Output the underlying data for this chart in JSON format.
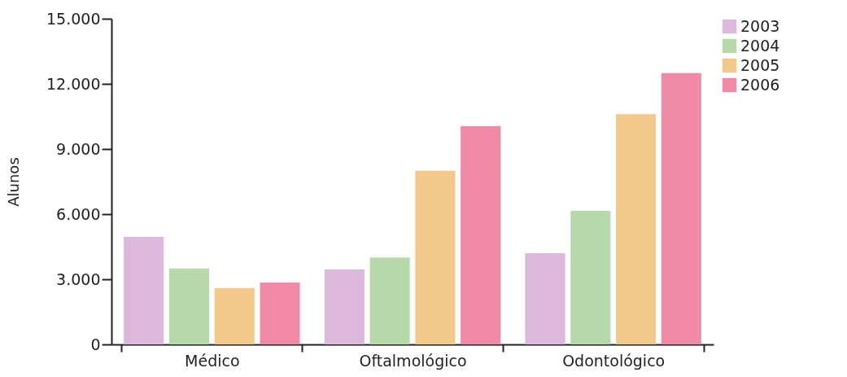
{
  "chart_data": {
    "type": "bar",
    "ylabel": "Alunos",
    "categories": [
      "Médico",
      "Oftalmológico",
      "Odontológico"
    ],
    "series": [
      {
        "name": "2003",
        "color": "#dcb8dc",
        "values": [
          4950,
          3450,
          4200
        ]
      },
      {
        "name": "2004",
        "color": "#b5d9a8",
        "values": [
          3500,
          4000,
          6150
        ]
      },
      {
        "name": "2005",
        "color": "#f3c98a",
        "values": [
          2600,
          8000,
          10600
        ]
      },
      {
        "name": "2006",
        "color": "#f08aa6",
        "values": [
          2850,
          10050,
          12500
        ]
      }
    ],
    "ylim": [
      0,
      15000
    ],
    "yticks": [
      0,
      {
        "value": 3000,
        "label": "3.000"
      },
      {
        "value": 6000,
        "label": "6.000"
      },
      {
        "value": 9000,
        "label": "9.000"
      },
      {
        "value": 12000,
        "label": "12.000"
      },
      {
        "value": 15000,
        "label": "15.000"
      }
    ],
    "grid": false,
    "legend": "top right"
  }
}
